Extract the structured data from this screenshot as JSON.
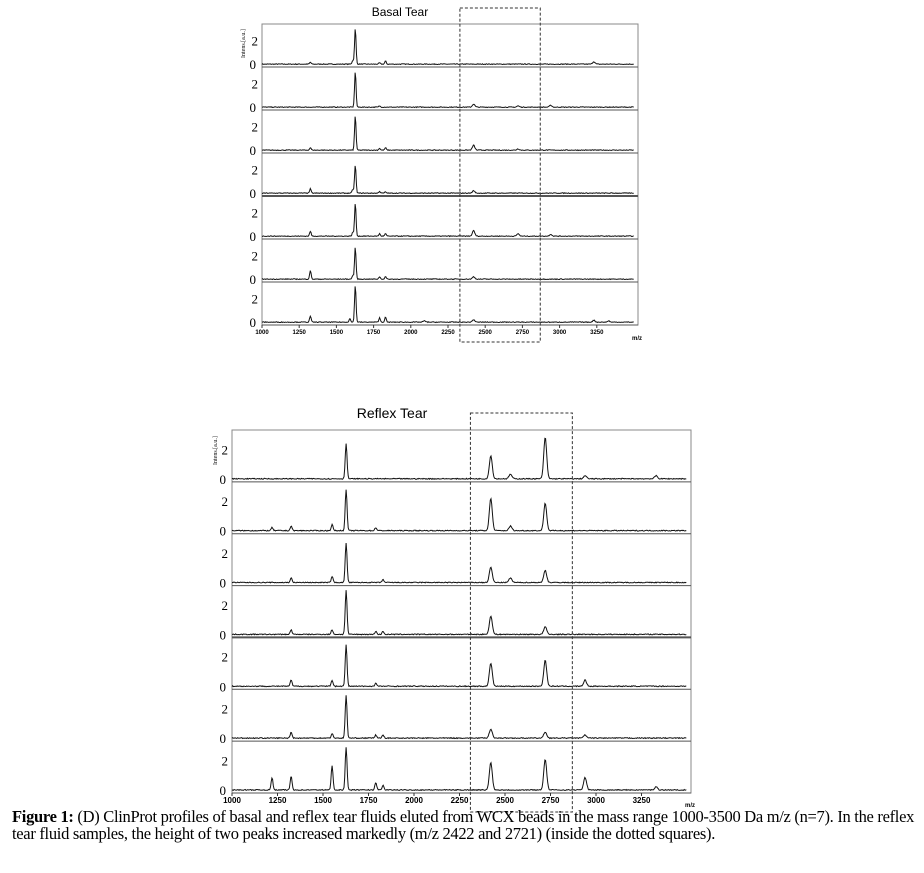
{
  "caption": {
    "label": "Figure 1:",
    "text": " (D) ClinProt profiles of basal and reflex tear fluids eluted from WCX beads in the mass range 1000-3500 Da m/z (n=7). In the reflex tear fluid samples, the height of two peaks increased markedly (m/z 2422 and 2721) (inside the dotted squares)."
  },
  "chart_data": [
    {
      "type": "line",
      "title": "Basal Tear",
      "ylabel": "Intens.[a.u.]",
      "xlabel": "m/z",
      "xlim": [
        1000,
        3500
      ],
      "ylim": [
        0,
        3
      ],
      "xticks": [
        "1000",
        "1250",
        "1500",
        "1750",
        "2000",
        "2250",
        "2500",
        "2750",
        "3000",
        "3250"
      ],
      "yticks": [
        "0",
        "2"
      ],
      "highlight_range": [
        2330,
        2870
      ],
      "series": [
        {
          "peaks": [
            [
              1325,
              0.15
            ],
            [
              1610,
              0.3
            ],
            [
              1627,
              2.9
            ],
            [
              1790,
              0.1
            ],
            [
              1830,
              0.25
            ],
            [
              3230,
              0.2
            ]
          ]
        },
        {
          "peaks": [
            [
              1627,
              2.9
            ],
            [
              1790,
              0.1
            ],
            [
              2422,
              0.25
            ],
            [
              2721,
              0.1
            ],
            [
              2940,
              0.15
            ]
          ]
        },
        {
          "peaks": [
            [
              1325,
              0.2
            ],
            [
              1627,
              2.8
            ],
            [
              1790,
              0.15
            ],
            [
              1830,
              0.2
            ],
            [
              2422,
              0.4
            ],
            [
              2721,
              0.1
            ]
          ]
        },
        {
          "peaks": [
            [
              1325,
              0.35
            ],
            [
              1610,
              0.3
            ],
            [
              1627,
              2.3
            ],
            [
              1790,
              0.15
            ],
            [
              1830,
              0.1
            ],
            [
              2422,
              0.2
            ]
          ]
        },
        {
          "peaks": [
            [
              1325,
              0.4
            ],
            [
              1610,
              0.3
            ],
            [
              1627,
              2.7
            ],
            [
              1790,
              0.2
            ],
            [
              1830,
              0.2
            ],
            [
              2422,
              0.45
            ],
            [
              2721,
              0.2
            ],
            [
              2940,
              0.15
            ]
          ]
        },
        {
          "peaks": [
            [
              1325,
              0.7
            ],
            [
              1610,
              0.3
            ],
            [
              1627,
              2.6
            ],
            [
              1790,
              0.2
            ],
            [
              1830,
              0.2
            ],
            [
              2422,
              0.2
            ]
          ]
        },
        {
          "peaks": [
            [
              1325,
              0.5
            ],
            [
              1590,
              0.3
            ],
            [
              1627,
              3.0
            ],
            [
              1790,
              0.35
            ],
            [
              1830,
              0.4
            ],
            [
              2090,
              0.1
            ],
            [
              2422,
              0.2
            ],
            [
              3230,
              0.15
            ],
            [
              3330,
              0.1
            ]
          ]
        }
      ]
    },
    {
      "type": "line",
      "title": "Reflex Tear",
      "ylabel": "Intens.[a.u.]",
      "xlabel": "m/z",
      "xlim": [
        1000,
        3500
      ],
      "ylim": [
        0,
        3
      ],
      "xticks": [
        "1000",
        "1250",
        "1500",
        "1750",
        "2000",
        "2250",
        "2500",
        "2750",
        "3000",
        "3250"
      ],
      "yticks": [
        "0",
        "2"
      ],
      "highlight_range": [
        2310,
        2870
      ],
      "series": [
        {
          "peaks": [
            [
              1627,
              2.3
            ],
            [
              2422,
              1.5
            ],
            [
              2530,
              0.3
            ],
            [
              2721,
              2.7
            ],
            [
              2940,
              0.2
            ],
            [
              3330,
              0.2
            ]
          ]
        },
        {
          "peaks": [
            [
              1220,
              0.2
            ],
            [
              1325,
              0.3
            ],
            [
              1550,
              0.4
            ],
            [
              1627,
              2.7
            ],
            [
              1790,
              0.2
            ],
            [
              2422,
              2.1
            ],
            [
              2530,
              0.3
            ],
            [
              2721,
              1.8
            ]
          ]
        },
        {
          "peaks": [
            [
              1325,
              0.3
            ],
            [
              1550,
              0.4
            ],
            [
              1627,
              2.6
            ],
            [
              1830,
              0.2
            ],
            [
              2422,
              1.0
            ],
            [
              2530,
              0.3
            ],
            [
              2721,
              0.8
            ]
          ]
        },
        {
          "peaks": [
            [
              1325,
              0.3
            ],
            [
              1550,
              0.3
            ],
            [
              1627,
              2.9
            ],
            [
              1790,
              0.2
            ],
            [
              1830,
              0.2
            ],
            [
              2422,
              1.2
            ],
            [
              2721,
              0.5
            ]
          ]
        },
        {
          "peaks": [
            [
              1325,
              0.4
            ],
            [
              1550,
              0.4
            ],
            [
              1627,
              2.7
            ],
            [
              1790,
              0.2
            ],
            [
              2422,
              1.5
            ],
            [
              2721,
              1.7
            ],
            [
              2940,
              0.4
            ]
          ]
        },
        {
          "peaks": [
            [
              1325,
              0.4
            ],
            [
              1550,
              0.3
            ],
            [
              1627,
              2.8
            ],
            [
              1790,
              0.2
            ],
            [
              1830,
              0.2
            ],
            [
              2422,
              0.6
            ],
            [
              2721,
              0.4
            ],
            [
              2940,
              0.2
            ]
          ]
        },
        {
          "peaks": [
            [
              1220,
              0.8
            ],
            [
              1325,
              0.9
            ],
            [
              1550,
              1.6
            ],
            [
              1627,
              2.8
            ],
            [
              1790,
              0.5
            ],
            [
              1830,
              0.3
            ],
            [
              2422,
              1.8
            ],
            [
              2721,
              2.0
            ],
            [
              2940,
              0.8
            ],
            [
              3330,
              0.2
            ]
          ]
        }
      ]
    }
  ]
}
